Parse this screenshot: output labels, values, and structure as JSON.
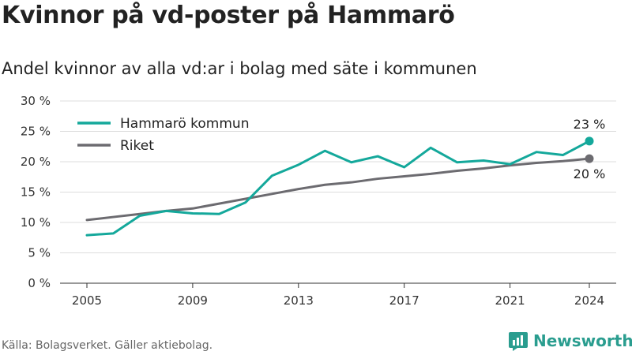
{
  "title": "Kvinnor på vd-poster på Hammarö",
  "subtitle": "Andel kvinnor av alla vd:ar i bolag med säte i kommunen",
  "source": "Källa: Bolagsverket. Gäller aktiebolag.",
  "brand": "Newsworthy",
  "colors": {
    "hammaro": "#14a89b",
    "riket": "#6c6b70",
    "grid": "#dddddd",
    "brand": "#2a9d8f"
  },
  "icons": {
    "brand_logo": "bar-chart-speech-bubble-icon"
  },
  "chart_data": {
    "type": "line",
    "x": [
      2005,
      2006,
      2007,
      2008,
      2009,
      2010,
      2011,
      2012,
      2013,
      2014,
      2015,
      2016,
      2017,
      2018,
      2019,
      2020,
      2021,
      2022,
      2023,
      2024
    ],
    "series": [
      {
        "name": "Hammarö kommun",
        "color": "#14a89b",
        "values": [
          7.9,
          8.2,
          11.1,
          11.9,
          11.5,
          11.4,
          13.3,
          17.7,
          19.5,
          21.8,
          19.9,
          20.9,
          19.1,
          22.3,
          19.9,
          20.2,
          19.6,
          21.6,
          21.1,
          23.4
        ],
        "end_label": "23 %"
      },
      {
        "name": "Riket",
        "color": "#6c6b70",
        "values": [
          10.4,
          10.9,
          11.4,
          11.9,
          12.3,
          13.1,
          13.9,
          14.7,
          15.5,
          16.2,
          16.6,
          17.2,
          17.6,
          18.0,
          18.5,
          18.9,
          19.4,
          19.8,
          20.1,
          20.5
        ],
        "end_label": "20 %"
      }
    ],
    "ylim": [
      0,
      30
    ],
    "y_ticks": [
      0,
      5,
      10,
      15,
      20,
      25,
      30
    ],
    "y_tick_labels": [
      "0 %",
      "5 %",
      "10 %",
      "15 %",
      "20 %",
      "25 %",
      "30 %"
    ],
    "x_ticks": [
      2005,
      2009,
      2013,
      2017,
      2021,
      2024
    ],
    "x_tick_labels": [
      "2005",
      "2009",
      "2013",
      "2017",
      "2021",
      "2024"
    ],
    "grid": true,
    "legend_position": "top-left"
  }
}
